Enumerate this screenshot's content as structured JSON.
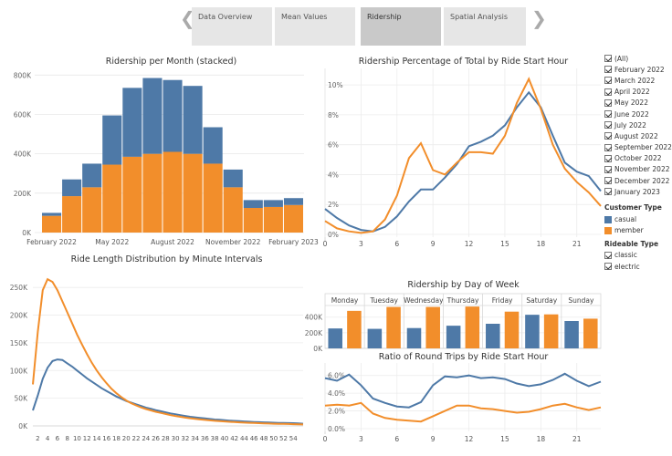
{
  "nav": {
    "tabs": [
      {
        "label": "Data Overview",
        "active": false
      },
      {
        "label": "Mean Values",
        "active": false
      },
      {
        "label": "Ridership",
        "active": true
      },
      {
        "label": "Spatial Analysis",
        "active": false
      }
    ],
    "prev_icon": "chevron-left-icon",
    "next_icon": "chevron-right-icon"
  },
  "colors": {
    "casual": "#4e79a7",
    "member": "#f28e2b"
  },
  "legend": {
    "months": [
      "(All)",
      "February 2022",
      "March 2022",
      "April 2022",
      "May 2022",
      "June 2022",
      "July 2022",
      "August 2022",
      "September 2022",
      "October 2022",
      "November 2022",
      "December 2022",
      "January 2023"
    ],
    "customer_type_title": "Customer Type",
    "customer_types": [
      "casual",
      "member"
    ],
    "rideable_type_title": "Rideable Type",
    "rideable_types": [
      "classic",
      "electric"
    ]
  },
  "chart_data": [
    {
      "id": "monthly",
      "type": "bar",
      "title": "Ridership per Month (stacked)",
      "categories": [
        "Feb 2022",
        "Mar 2022",
        "Apr 2022",
        "May 2022",
        "Jun 2022",
        "Jul 2022",
        "Aug 2022",
        "Sep 2022",
        "Oct 2022",
        "Nov 2022",
        "Dec 2022",
        "Jan 2023",
        "Feb 2023"
      ],
      "tick_labels": [
        "February 2022",
        "May 2022",
        "August 2022",
        "November 2022",
        "February 2023"
      ],
      "y_ticks": [
        "0K",
        "200K",
        "400K",
        "600K",
        "800K"
      ],
      "ylim": [
        0,
        820000
      ],
      "series": [
        {
          "name": "member",
          "values": [
            85000,
            185000,
            230000,
            345000,
            385000,
            400000,
            410000,
            400000,
            350000,
            230000,
            125000,
            130000,
            140000
          ]
        },
        {
          "name": "casual",
          "values": [
            15000,
            85000,
            120000,
            250000,
            350000,
            385000,
            365000,
            345000,
            185000,
            90000,
            40000,
            35000,
            35000
          ]
        }
      ]
    },
    {
      "id": "hourly",
      "type": "line",
      "title": "Ridership Percentage of Total by Ride Start Hour",
      "x": [
        0,
        1,
        2,
        3,
        4,
        5,
        6,
        7,
        8,
        9,
        10,
        11,
        12,
        13,
        14,
        15,
        16,
        17,
        18,
        19,
        20,
        21,
        22,
        23
      ],
      "x_ticks": [
        "0",
        "3",
        "6",
        "9",
        "12",
        "15",
        "18",
        "21"
      ],
      "y_ticks": [
        "0%",
        "2%",
        "4%",
        "6%",
        "8%",
        "10%"
      ],
      "ylim": [
        0,
        10.8
      ],
      "series": [
        {
          "name": "casual",
          "values": [
            1.7,
            1.1,
            0.6,
            0.3,
            0.2,
            0.5,
            1.2,
            2.2,
            3.0,
            3.0,
            3.8,
            4.7,
            5.9,
            6.2,
            6.6,
            7.3,
            8.5,
            9.5,
            8.5,
            6.6,
            4.8,
            4.2,
            3.9,
            2.9
          ]
        },
        {
          "name": "member",
          "values": [
            0.9,
            0.4,
            0.2,
            0.1,
            0.2,
            1.0,
            2.6,
            5.1,
            6.1,
            4.3,
            4.0,
            4.8,
            5.5,
            5.5,
            5.4,
            6.6,
            8.8,
            10.4,
            8.4,
            6.0,
            4.4,
            3.5,
            2.8,
            1.9
          ]
        }
      ]
    },
    {
      "id": "length",
      "type": "line",
      "title": "Ride Length Distribution by Minute Intervals",
      "x": [
        1,
        2,
        3,
        4,
        5,
        6,
        7,
        8,
        9,
        10,
        11,
        12,
        13,
        14,
        15,
        16,
        17,
        18,
        19,
        20,
        21,
        22,
        23,
        24,
        25,
        26,
        27,
        28,
        29,
        30,
        31,
        32,
        33,
        34,
        35,
        36,
        37,
        38,
        39,
        40,
        41,
        42,
        43,
        44,
        45,
        46,
        47,
        48,
        49,
        50,
        51,
        52,
        53,
        54,
        55,
        56
      ],
      "x_ticks": [
        "2",
        "4",
        "6",
        "8",
        "10",
        "12",
        "14",
        "16",
        "18",
        "20",
        "22",
        "24",
        "26",
        "28",
        "30",
        "32",
        "34",
        "36",
        "38",
        "40",
        "42",
        "44",
        "46",
        "48",
        "50",
        "52",
        "54"
      ],
      "y_ticks": [
        "0K",
        "50K",
        "100K",
        "150K",
        "200K",
        "250K"
      ],
      "ylim": [
        0,
        275000
      ],
      "series": [
        {
          "name": "casual",
          "values": [
            28000,
            55000,
            85000,
            105000,
            117000,
            120000,
            119000,
            113000,
            107000,
            100000,
            93000,
            86000,
            80000,
            74000,
            68000,
            63000,
            58000,
            53000,
            49000,
            45000,
            42000,
            39000,
            36000,
            33000,
            31000,
            28500,
            26500,
            24500,
            22500,
            21000,
            19500,
            18000,
            16500,
            15500,
            14500,
            13500,
            12500,
            11500,
            11000,
            10200,
            9500,
            9000,
            8500,
            8000,
            7500,
            7000,
            6700,
            6400,
            6100,
            5800,
            5500,
            5300,
            5100,
            4900,
            4600,
            4000
          ]
        },
        {
          "name": "member",
          "values": [
            75000,
            170000,
            245000,
            265000,
            260000,
            245000,
            225000,
            205000,
            185000,
            165000,
            147000,
            130000,
            114000,
            100000,
            88000,
            77000,
            67000,
            59000,
            52000,
            46000,
            41000,
            37000,
            33500,
            30500,
            28000,
            25500,
            23500,
            21500,
            19500,
            18000,
            16500,
            15000,
            13800,
            12700,
            11700,
            10800,
            10000,
            9300,
            8600,
            8000,
            7400,
            6900,
            6400,
            6000,
            5600,
            5200,
            4900,
            4600,
            4300,
            4000,
            3800,
            3600,
            3400,
            3200,
            3000,
            2700
          ]
        }
      ]
    },
    {
      "id": "weekday",
      "type": "bar",
      "title": "Ridership by Day of Week",
      "categories": [
        "Monday",
        "Tuesday",
        "Wednesday",
        "Thursday",
        "Friday",
        "Saturday",
        "Sunday"
      ],
      "y_ticks": [
        "0K",
        "200K",
        "400K"
      ],
      "ylim": [
        0,
        560000
      ],
      "series": [
        {
          "name": "casual",
          "values": [
            255000,
            250000,
            260000,
            290000,
            315000,
            430000,
            350000
          ]
        },
        {
          "name": "member",
          "values": [
            480000,
            530000,
            530000,
            535000,
            470000,
            435000,
            380000
          ]
        }
      ]
    },
    {
      "id": "roundtrip",
      "type": "line",
      "title": "Ratio of Round Trips by Ride Start Hour",
      "x": [
        0,
        1,
        2,
        3,
        4,
        5,
        6,
        7,
        8,
        9,
        10,
        11,
        12,
        13,
        14,
        15,
        16,
        17,
        18,
        19,
        20,
        21,
        22,
        23
      ],
      "x_ticks": [
        "0",
        "3",
        "6",
        "9",
        "12",
        "15",
        "18",
        "21"
      ],
      "y_ticks": [
        "0.0%",
        "2.0%",
        "4.0%",
        "6.0%"
      ],
      "ylim": [
        0,
        7
      ],
      "series": [
        {
          "name": "casual",
          "values": [
            5.7,
            5.4,
            6.1,
            4.9,
            3.4,
            2.9,
            2.5,
            2.4,
            3.0,
            4.9,
            5.9,
            5.8,
            6.0,
            5.7,
            5.8,
            5.6,
            5.1,
            4.8,
            5.0,
            5.5,
            6.2,
            5.4,
            4.8,
            5.3
          ]
        },
        {
          "name": "member",
          "values": [
            2.6,
            2.7,
            2.6,
            2.9,
            1.7,
            1.2,
            1.0,
            0.9,
            0.8,
            1.4,
            2.0,
            2.6,
            2.6,
            2.3,
            2.2,
            2.0,
            1.8,
            1.9,
            2.2,
            2.6,
            2.8,
            2.4,
            2.1,
            2.4
          ]
        }
      ]
    }
  ]
}
